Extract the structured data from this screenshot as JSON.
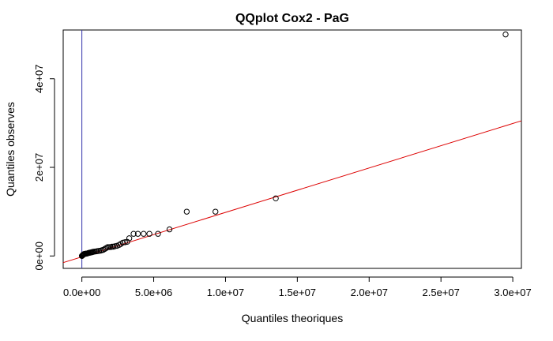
{
  "chart_data": {
    "type": "scatter",
    "title": "QQplot Cox2 - PaG",
    "xlabel": "Quantiles theoriques",
    "ylabel": "Quantiles observes",
    "xlim": [
      -1300000,
      30600000
    ],
    "ylim": [
      -2800000,
      51000000
    ],
    "x_ticks": [
      0,
      5000000,
      10000000,
      15000000,
      20000000,
      25000000,
      30000000
    ],
    "x_tick_labels": [
      "0.0e+00",
      "5.0e+06",
      "1.0e+07",
      "1.5e+07",
      "2.0e+07",
      "2.5e+07",
      "3.0e+07"
    ],
    "y_ticks": [
      0,
      20000000,
      40000000
    ],
    "y_tick_labels": [
      "0e+00",
      "2e+07",
      "4e+07"
    ],
    "grid": false,
    "legend": "none",
    "points_color": "#000000",
    "points": [
      [
        0,
        0
      ],
      [
        20000,
        50000
      ],
      [
        40000,
        120000
      ],
      [
        60000,
        200000
      ],
      [
        80000,
        260000
      ],
      [
        100000,
        320000
      ],
      [
        120000,
        380000
      ],
      [
        150000,
        420000
      ],
      [
        180000,
        450000
      ],
      [
        200000,
        480000
      ],
      [
        250000,
        500000
      ],
      [
        300000,
        520000
      ],
      [
        350000,
        550000
      ],
      [
        400000,
        600000
      ],
      [
        450000,
        650000
      ],
      [
        500000,
        700000
      ],
      [
        550000,
        750000
      ],
      [
        600000,
        780000
      ],
      [
        650000,
        800000
      ],
      [
        700000,
        850000
      ],
      [
        750000,
        900000
      ],
      [
        800000,
        950000
      ],
      [
        900000,
        1000000
      ],
      [
        1000000,
        1050000
      ],
      [
        1100000,
        1100000
      ],
      [
        1200000,
        1150000
      ],
      [
        1300000,
        1200000
      ],
      [
        1400000,
        1300000
      ],
      [
        1500000,
        1400000
      ],
      [
        1600000,
        1600000
      ],
      [
        1700000,
        1800000
      ],
      [
        1800000,
        2000000
      ],
      [
        1900000,
        2000000
      ],
      [
        2000000,
        2000000
      ],
      [
        2100000,
        2100000
      ],
      [
        2200000,
        2100000
      ],
      [
        2300000,
        2200000
      ],
      [
        2450000,
        2300000
      ],
      [
        2600000,
        2500000
      ],
      [
        2700000,
        2700000
      ],
      [
        2850000,
        3000000
      ],
      [
        3000000,
        3100000
      ],
      [
        3150000,
        3200000
      ],
      [
        3300000,
        4000000
      ],
      [
        3600000,
        5000000
      ],
      [
        3900000,
        5000000
      ],
      [
        4300000,
        5000000
      ],
      [
        4700000,
        5000000
      ],
      [
        5300000,
        5000000
      ],
      [
        6100000,
        6000000
      ],
      [
        7300000,
        10000000
      ],
      [
        9300000,
        10000000
      ],
      [
        13500000,
        13000000
      ],
      [
        29500000,
        50000000
      ]
    ],
    "reference_lines": [
      {
        "kind": "fit",
        "color": "#dd0000",
        "from": [
          -1300000,
          -1500000
        ],
        "to": [
          30600000,
          30500000
        ]
      },
      {
        "kind": "vertical",
        "color": "#3333aa",
        "x": 0
      }
    ]
  }
}
